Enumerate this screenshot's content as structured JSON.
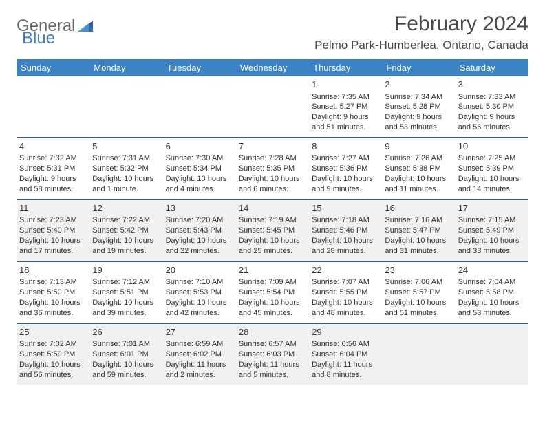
{
  "logo": {
    "part1": "General",
    "part2": "Blue"
  },
  "title": {
    "month": "February 2024",
    "location": "Pelmo Park-Humberlea, Ontario, Canada"
  },
  "colors": {
    "header_bg": "#3b82c4",
    "header_text": "#ffffff",
    "row_border": "#3b5a80",
    "shade_bg": "#f1f1f1",
    "body_text": "#333333",
    "logo_gray": "#6b6b6b",
    "logo_blue": "#3b82c4"
  },
  "weekdays": [
    "Sunday",
    "Monday",
    "Tuesday",
    "Wednesday",
    "Thursday",
    "Friday",
    "Saturday"
  ],
  "weeks": [
    {
      "shade": false,
      "days": [
        null,
        null,
        null,
        null,
        {
          "n": "1",
          "sr": "Sunrise: 7:35 AM",
          "ss": "Sunset: 5:27 PM",
          "d1": "Daylight: 9 hours",
          "d2": "and 51 minutes."
        },
        {
          "n": "2",
          "sr": "Sunrise: 7:34 AM",
          "ss": "Sunset: 5:28 PM",
          "d1": "Daylight: 9 hours",
          "d2": "and 53 minutes."
        },
        {
          "n": "3",
          "sr": "Sunrise: 7:33 AM",
          "ss": "Sunset: 5:30 PM",
          "d1": "Daylight: 9 hours",
          "d2": "and 56 minutes."
        }
      ]
    },
    {
      "shade": false,
      "days": [
        {
          "n": "4",
          "sr": "Sunrise: 7:32 AM",
          "ss": "Sunset: 5:31 PM",
          "d1": "Daylight: 9 hours",
          "d2": "and 58 minutes."
        },
        {
          "n": "5",
          "sr": "Sunrise: 7:31 AM",
          "ss": "Sunset: 5:32 PM",
          "d1": "Daylight: 10 hours",
          "d2": "and 1 minute."
        },
        {
          "n": "6",
          "sr": "Sunrise: 7:30 AM",
          "ss": "Sunset: 5:34 PM",
          "d1": "Daylight: 10 hours",
          "d2": "and 4 minutes."
        },
        {
          "n": "7",
          "sr": "Sunrise: 7:28 AM",
          "ss": "Sunset: 5:35 PM",
          "d1": "Daylight: 10 hours",
          "d2": "and 6 minutes."
        },
        {
          "n": "8",
          "sr": "Sunrise: 7:27 AM",
          "ss": "Sunset: 5:36 PM",
          "d1": "Daylight: 10 hours",
          "d2": "and 9 minutes."
        },
        {
          "n": "9",
          "sr": "Sunrise: 7:26 AM",
          "ss": "Sunset: 5:38 PM",
          "d1": "Daylight: 10 hours",
          "d2": "and 11 minutes."
        },
        {
          "n": "10",
          "sr": "Sunrise: 7:25 AM",
          "ss": "Sunset: 5:39 PM",
          "d1": "Daylight: 10 hours",
          "d2": "and 14 minutes."
        }
      ]
    },
    {
      "shade": true,
      "days": [
        {
          "n": "11",
          "sr": "Sunrise: 7:23 AM",
          "ss": "Sunset: 5:40 PM",
          "d1": "Daylight: 10 hours",
          "d2": "and 17 minutes."
        },
        {
          "n": "12",
          "sr": "Sunrise: 7:22 AM",
          "ss": "Sunset: 5:42 PM",
          "d1": "Daylight: 10 hours",
          "d2": "and 19 minutes."
        },
        {
          "n": "13",
          "sr": "Sunrise: 7:20 AM",
          "ss": "Sunset: 5:43 PM",
          "d1": "Daylight: 10 hours",
          "d2": "and 22 minutes."
        },
        {
          "n": "14",
          "sr": "Sunrise: 7:19 AM",
          "ss": "Sunset: 5:45 PM",
          "d1": "Daylight: 10 hours",
          "d2": "and 25 minutes."
        },
        {
          "n": "15",
          "sr": "Sunrise: 7:18 AM",
          "ss": "Sunset: 5:46 PM",
          "d1": "Daylight: 10 hours",
          "d2": "and 28 minutes."
        },
        {
          "n": "16",
          "sr": "Sunrise: 7:16 AM",
          "ss": "Sunset: 5:47 PM",
          "d1": "Daylight: 10 hours",
          "d2": "and 31 minutes."
        },
        {
          "n": "17",
          "sr": "Sunrise: 7:15 AM",
          "ss": "Sunset: 5:49 PM",
          "d1": "Daylight: 10 hours",
          "d2": "and 33 minutes."
        }
      ]
    },
    {
      "shade": false,
      "days": [
        {
          "n": "18",
          "sr": "Sunrise: 7:13 AM",
          "ss": "Sunset: 5:50 PM",
          "d1": "Daylight: 10 hours",
          "d2": "and 36 minutes."
        },
        {
          "n": "19",
          "sr": "Sunrise: 7:12 AM",
          "ss": "Sunset: 5:51 PM",
          "d1": "Daylight: 10 hours",
          "d2": "and 39 minutes."
        },
        {
          "n": "20",
          "sr": "Sunrise: 7:10 AM",
          "ss": "Sunset: 5:53 PM",
          "d1": "Daylight: 10 hours",
          "d2": "and 42 minutes."
        },
        {
          "n": "21",
          "sr": "Sunrise: 7:09 AM",
          "ss": "Sunset: 5:54 PM",
          "d1": "Daylight: 10 hours",
          "d2": "and 45 minutes."
        },
        {
          "n": "22",
          "sr": "Sunrise: 7:07 AM",
          "ss": "Sunset: 5:55 PM",
          "d1": "Daylight: 10 hours",
          "d2": "and 48 minutes."
        },
        {
          "n": "23",
          "sr": "Sunrise: 7:06 AM",
          "ss": "Sunset: 5:57 PM",
          "d1": "Daylight: 10 hours",
          "d2": "and 51 minutes."
        },
        {
          "n": "24",
          "sr": "Sunrise: 7:04 AM",
          "ss": "Sunset: 5:58 PM",
          "d1": "Daylight: 10 hours",
          "d2": "and 53 minutes."
        }
      ]
    },
    {
      "shade": true,
      "days": [
        {
          "n": "25",
          "sr": "Sunrise: 7:02 AM",
          "ss": "Sunset: 5:59 PM",
          "d1": "Daylight: 10 hours",
          "d2": "and 56 minutes."
        },
        {
          "n": "26",
          "sr": "Sunrise: 7:01 AM",
          "ss": "Sunset: 6:01 PM",
          "d1": "Daylight: 10 hours",
          "d2": "and 59 minutes."
        },
        {
          "n": "27",
          "sr": "Sunrise: 6:59 AM",
          "ss": "Sunset: 6:02 PM",
          "d1": "Daylight: 11 hours",
          "d2": "and 2 minutes."
        },
        {
          "n": "28",
          "sr": "Sunrise: 6:57 AM",
          "ss": "Sunset: 6:03 PM",
          "d1": "Daylight: 11 hours",
          "d2": "and 5 minutes."
        },
        {
          "n": "29",
          "sr": "Sunrise: 6:56 AM",
          "ss": "Sunset: 6:04 PM",
          "d1": "Daylight: 11 hours",
          "d2": "and 8 minutes."
        },
        null,
        null
      ]
    }
  ]
}
